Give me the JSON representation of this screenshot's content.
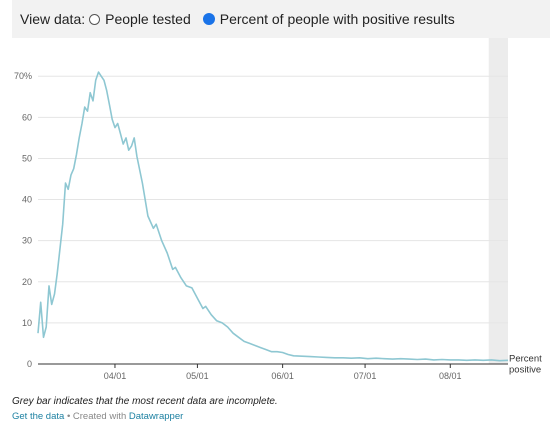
{
  "controls": {
    "label": "View data:",
    "options": [
      {
        "label": "People tested",
        "selected": false
      },
      {
        "label": "Percent of people with positive results",
        "selected": true
      }
    ]
  },
  "note": "Grey bar indicates that the most recent data are incomplete.",
  "credits": {
    "get_data": "Get the data",
    "separator": "• Created with",
    "tool": "Datawrapper"
  },
  "colors": {
    "line": "#8ec7d2",
    "incomplete_band": "#ececec",
    "grid": "#e5e5e5",
    "selected_radio": "#1a73e8"
  },
  "chart_data": {
    "type": "line",
    "title": "",
    "xlabel": "",
    "ylabel": "",
    "y_ticks": [
      "0",
      "10",
      "20",
      "30",
      "40",
      "50",
      "60",
      "70%"
    ],
    "x_ticks": [
      "04/01",
      "05/01",
      "06/01",
      "07/01",
      "08/01"
    ],
    "ylim": [
      0,
      72
    ],
    "xlim": [
      "2020-03-04",
      "2020-08-22"
    ],
    "grid": true,
    "incomplete_range": [
      "2020-08-15",
      "2020-08-22"
    ],
    "series": [
      {
        "name": "Percent positive",
        "label_lines": [
          "Percent",
          "positive"
        ],
        "points": [
          [
            "2020-03-04",
            7.5
          ],
          [
            "2020-03-05",
            15
          ],
          [
            "2020-03-06",
            6.5
          ],
          [
            "2020-03-07",
            9
          ],
          [
            "2020-03-08",
            19
          ],
          [
            "2020-03-09",
            14.5
          ],
          [
            "2020-03-10",
            17
          ],
          [
            "2020-03-11",
            22
          ],
          [
            "2020-03-13",
            34
          ],
          [
            "2020-03-14",
            44
          ],
          [
            "2020-03-15",
            42.5
          ],
          [
            "2020-03-16",
            46
          ],
          [
            "2020-03-17",
            47.5
          ],
          [
            "2020-03-18",
            51
          ],
          [
            "2020-03-19",
            55
          ],
          [
            "2020-03-20",
            58.5
          ],
          [
            "2020-03-21",
            62.5
          ],
          [
            "2020-03-22",
            61.5
          ],
          [
            "2020-03-23",
            66
          ],
          [
            "2020-03-24",
            64
          ],
          [
            "2020-03-25",
            69
          ],
          [
            "2020-03-26",
            71
          ],
          [
            "2020-03-27",
            70
          ],
          [
            "2020-03-28",
            69
          ],
          [
            "2020-03-29",
            66.5
          ],
          [
            "2020-03-30",
            63
          ],
          [
            "2020-03-31",
            59.5
          ],
          [
            "2020-04-01",
            57.5
          ],
          [
            "2020-04-02",
            58.5
          ],
          [
            "2020-04-03",
            56
          ],
          [
            "2020-04-04",
            53.5
          ],
          [
            "2020-04-05",
            55
          ],
          [
            "2020-04-06",
            52
          ],
          [
            "2020-04-07",
            53
          ],
          [
            "2020-04-08",
            55
          ],
          [
            "2020-04-09",
            50.5
          ],
          [
            "2020-04-11",
            44
          ],
          [
            "2020-04-13",
            36
          ],
          [
            "2020-04-15",
            33
          ],
          [
            "2020-04-16",
            34
          ],
          [
            "2020-04-18",
            30
          ],
          [
            "2020-04-20",
            27
          ],
          [
            "2020-04-22",
            23
          ],
          [
            "2020-04-23",
            23.5
          ],
          [
            "2020-04-25",
            21
          ],
          [
            "2020-04-27",
            19
          ],
          [
            "2020-04-29",
            18.5
          ],
          [
            "2020-05-01",
            16
          ],
          [
            "2020-05-03",
            13.5
          ],
          [
            "2020-05-04",
            14
          ],
          [
            "2020-05-06",
            12
          ],
          [
            "2020-05-08",
            10.5
          ],
          [
            "2020-05-10",
            10
          ],
          [
            "2020-05-12",
            9
          ],
          [
            "2020-05-14",
            7.5
          ],
          [
            "2020-05-16",
            6.5
          ],
          [
            "2020-05-18",
            5.5
          ],
          [
            "2020-05-20",
            5
          ],
          [
            "2020-05-22",
            4.5
          ],
          [
            "2020-05-24",
            4
          ],
          [
            "2020-05-26",
            3.5
          ],
          [
            "2020-05-28",
            3
          ],
          [
            "2020-05-30",
            3
          ],
          [
            "2020-06-01",
            2.8
          ],
          [
            "2020-06-03",
            2.3
          ],
          [
            "2020-06-05",
            2
          ],
          [
            "2020-06-08",
            1.9
          ],
          [
            "2020-06-11",
            1.8
          ],
          [
            "2020-06-14",
            1.7
          ],
          [
            "2020-06-17",
            1.6
          ],
          [
            "2020-06-20",
            1.5
          ],
          [
            "2020-06-23",
            1.5
          ],
          [
            "2020-06-26",
            1.4
          ],
          [
            "2020-06-29",
            1.5
          ],
          [
            "2020-07-02",
            1.3
          ],
          [
            "2020-07-05",
            1.4
          ],
          [
            "2020-07-08",
            1.3
          ],
          [
            "2020-07-11",
            1.2
          ],
          [
            "2020-07-14",
            1.3
          ],
          [
            "2020-07-17",
            1.2
          ],
          [
            "2020-07-20",
            1.1
          ],
          [
            "2020-07-23",
            1.2
          ],
          [
            "2020-07-26",
            1.0
          ],
          [
            "2020-07-29",
            1.1
          ],
          [
            "2020-08-01",
            1.0
          ],
          [
            "2020-08-04",
            1.0
          ],
          [
            "2020-08-07",
            0.9
          ],
          [
            "2020-08-10",
            1.0
          ],
          [
            "2020-08-13",
            0.9
          ],
          [
            "2020-08-16",
            1.0
          ],
          [
            "2020-08-19",
            0.8
          ],
          [
            "2020-08-22",
            0.9
          ]
        ]
      }
    ]
  }
}
